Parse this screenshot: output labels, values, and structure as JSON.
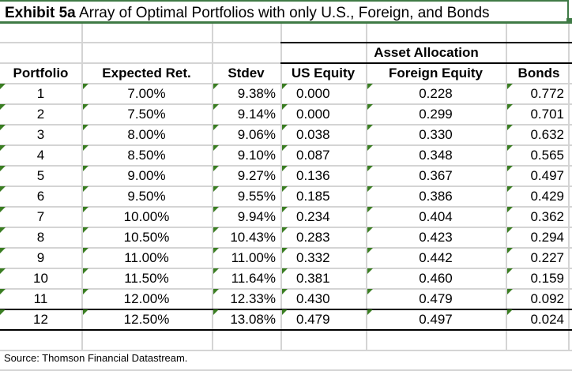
{
  "exhibit": {
    "label": "Exhibit 5a",
    "title": "Array of Optimal Portfolios with only U.S., Foreign, and Bonds"
  },
  "table": {
    "group_header": "Asset Allocation",
    "columns": [
      "Portfolio",
      "Expected Ret.",
      "Stdev",
      "US Equity",
      "Foreign Equity",
      "Bonds"
    ],
    "rows": [
      {
        "portfolio": "1",
        "expected_ret": "7.00%",
        "stdev": "9.38%",
        "us_equity": "0.000",
        "foreign_equity": "0.228",
        "bonds": "0.772"
      },
      {
        "portfolio": "2",
        "expected_ret": "7.50%",
        "stdev": "9.14%",
        "us_equity": "0.000",
        "foreign_equity": "0.299",
        "bonds": "0.701"
      },
      {
        "portfolio": "3",
        "expected_ret": "8.00%",
        "stdev": "9.06%",
        "us_equity": "0.038",
        "foreign_equity": "0.330",
        "bonds": "0.632"
      },
      {
        "portfolio": "4",
        "expected_ret": "8.50%",
        "stdev": "9.10%",
        "us_equity": "0.087",
        "foreign_equity": "0.348",
        "bonds": "0.565"
      },
      {
        "portfolio": "5",
        "expected_ret": "9.00%",
        "stdev": "9.27%",
        "us_equity": "0.136",
        "foreign_equity": "0.367",
        "bonds": "0.497"
      },
      {
        "portfolio": "6",
        "expected_ret": "9.50%",
        "stdev": "9.55%",
        "us_equity": "0.185",
        "foreign_equity": "0.386",
        "bonds": "0.429"
      },
      {
        "portfolio": "7",
        "expected_ret": "10.00%",
        "stdev": "9.94%",
        "us_equity": "0.234",
        "foreign_equity": "0.404",
        "bonds": "0.362"
      },
      {
        "portfolio": "8",
        "expected_ret": "10.50%",
        "stdev": "10.43%",
        "us_equity": "0.283",
        "foreign_equity": "0.423",
        "bonds": "0.294"
      },
      {
        "portfolio": "9",
        "expected_ret": "11.00%",
        "stdev": "11.00%",
        "us_equity": "0.332",
        "foreign_equity": "0.442",
        "bonds": "0.227"
      },
      {
        "portfolio": "10",
        "expected_ret": "11.50%",
        "stdev": "11.64%",
        "us_equity": "0.381",
        "foreign_equity": "0.460",
        "bonds": "0.159"
      },
      {
        "portfolio": "11",
        "expected_ret": "12.00%",
        "stdev": "12.33%",
        "us_equity": "0.430",
        "foreign_equity": "0.479",
        "bonds": "0.092"
      },
      {
        "portfolio": "12",
        "expected_ret": "12.50%",
        "stdev": "13.08%",
        "us_equity": "0.479",
        "foreign_equity": "0.497",
        "bonds": "0.024"
      }
    ]
  },
  "source": "Source: Thomson Financial Datastream.",
  "colors": {
    "accent_green": "#3f7a45",
    "flag_green": "#3a7d22",
    "gridline": "#d4d4d4"
  }
}
